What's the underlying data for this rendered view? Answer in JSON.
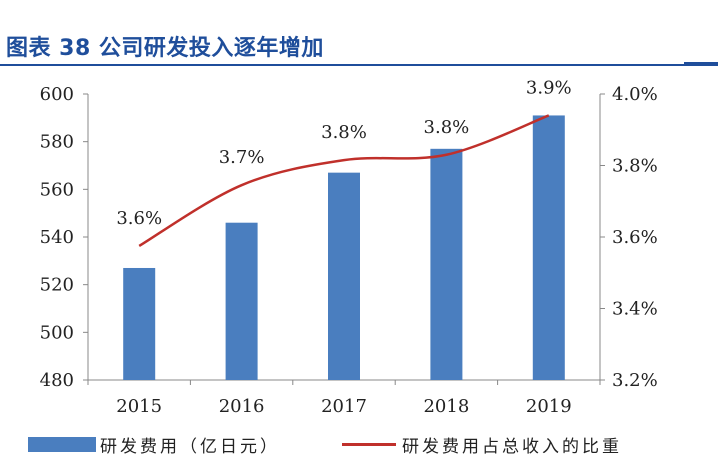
{
  "header": {
    "title": "图表 38   公司研发投入逐年增加"
  },
  "colors": {
    "bar": "#4a7ebf",
    "line": "#c0302b",
    "title": "#1f4e9b",
    "axis": "#888888"
  },
  "chart_data": {
    "type": "bar",
    "title": "",
    "categories": [
      "2015",
      "2016",
      "2017",
      "2018",
      "2019"
    ],
    "series": [
      {
        "name": "研发费用（亿日元）",
        "type": "bar",
        "axis": "left",
        "values": [
          527,
          546,
          567,
          577,
          591
        ]
      },
      {
        "name": "研发费用占总收入的比重",
        "type": "line",
        "axis": "right",
        "values": [
          0.03575,
          0.03745,
          0.03815,
          0.0383,
          0.0394
        ],
        "labels": [
          "3.6%",
          "3.7%",
          "3.8%",
          "3.8%",
          "3.9%"
        ]
      }
    ],
    "y_left": {
      "min": 480,
      "max": 600,
      "ticks": [
        "480",
        "500",
        "520",
        "540",
        "560",
        "580",
        "600"
      ]
    },
    "y_right": {
      "min": 0.032,
      "max": 0.04,
      "ticks": [
        "3.2%",
        "3.4%",
        "3.6%",
        "3.8%",
        "4.0%"
      ]
    },
    "grid": false,
    "legend_position": "bottom"
  }
}
